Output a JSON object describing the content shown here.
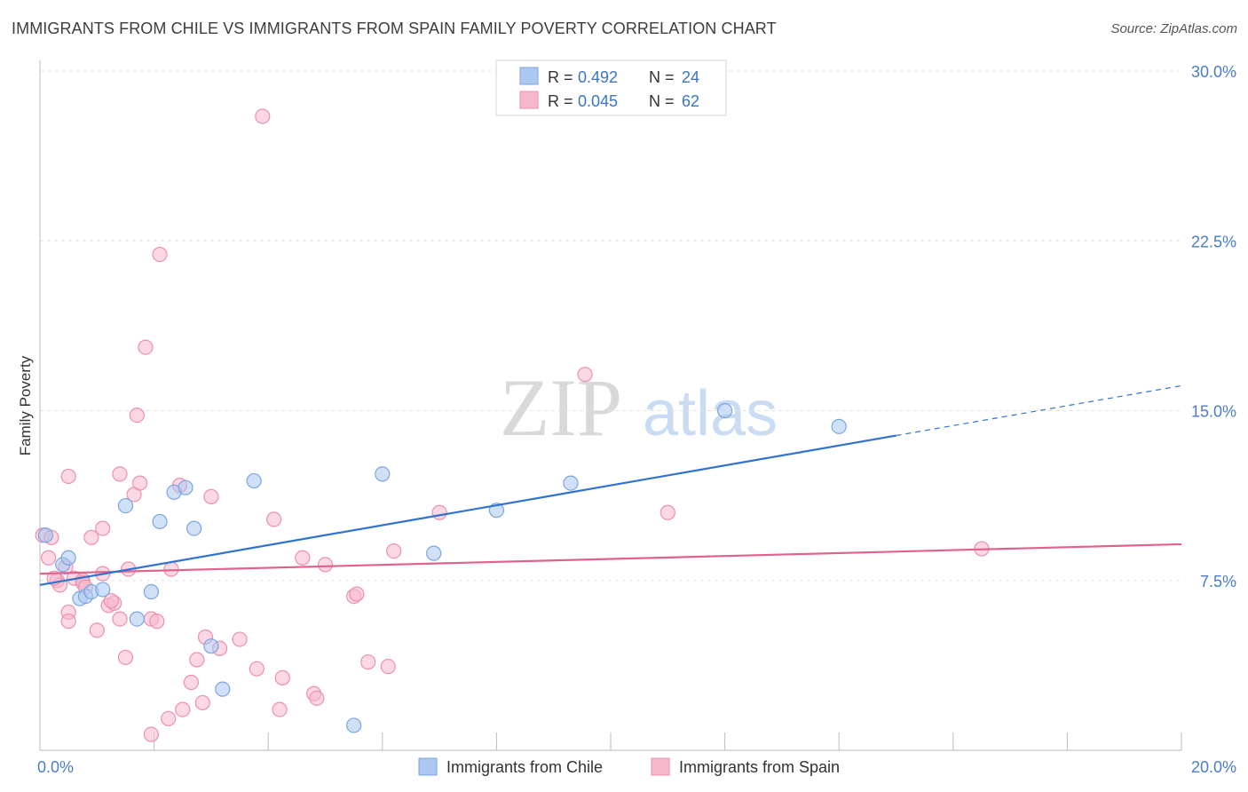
{
  "title": "IMMIGRANTS FROM CHILE VS IMMIGRANTS FROM SPAIN FAMILY POVERTY CORRELATION CHART",
  "source": "Source: ZipAtlas.com",
  "watermark": {
    "zip": "ZIP",
    "atlas": "atlas"
  },
  "colors": {
    "chile_fill": "#aac8f0",
    "chile_stroke": "#7aa6e0",
    "chile_line": "#2f72d0",
    "spain_fill": "#f7b8cc",
    "spain_stroke": "#ec90ae",
    "spain_line": "#e0628f",
    "axis_text": "#4a7cc7",
    "grid": "#e3e3e3"
  },
  "chart_data": {
    "type": "scatter",
    "title": "IMMIGRANTS FROM CHILE VS IMMIGRANTS FROM SPAIN FAMILY POVERTY CORRELATION CHART",
    "xlabel": "",
    "ylabel": "Family Poverty",
    "xlim": [
      0,
      20
    ],
    "ylim": [
      0,
      30
    ],
    "x_tick_labels": [
      "0.0%",
      "20.0%"
    ],
    "y_ticks": [
      7.5,
      15.0,
      22.5,
      30.0
    ],
    "y_tick_labels": [
      "7.5%",
      "15.0%",
      "22.5%",
      "30.0%"
    ],
    "grid": true,
    "stats": [
      {
        "r_label": "R =",
        "r": "0.492",
        "n_label": "N =",
        "n": "24"
      },
      {
        "r_label": "R =",
        "r": "0.045",
        "n_label": "N =",
        "n": "62"
      }
    ],
    "series": [
      {
        "name": "Immigrants from Chile",
        "points": [
          [
            0.1,
            9.5
          ],
          [
            0.4,
            8.2
          ],
          [
            0.5,
            8.5
          ],
          [
            0.7,
            6.7
          ],
          [
            0.8,
            6.8
          ],
          [
            0.9,
            7.0
          ],
          [
            1.1,
            7.1
          ],
          [
            1.5,
            10.8
          ],
          [
            1.7,
            5.8
          ],
          [
            1.95,
            7.0
          ],
          [
            2.1,
            10.1
          ],
          [
            2.35,
            11.4
          ],
          [
            2.55,
            11.6
          ],
          [
            2.7,
            9.8
          ],
          [
            3.0,
            4.6
          ],
          [
            3.2,
            2.7
          ],
          [
            3.75,
            11.9
          ],
          [
            5.5,
            1.1
          ],
          [
            6.0,
            12.2
          ],
          [
            6.9,
            8.7
          ],
          [
            8.0,
            10.6
          ],
          [
            9.3,
            11.8
          ],
          [
            12.0,
            15.0
          ],
          [
            14.0,
            14.3
          ]
        ],
        "trend": {
          "x": [
            0.0,
            15.0
          ],
          "y": [
            7.3,
            13.9
          ]
        },
        "trend_extension": {
          "x": [
            15.0,
            20.0
          ],
          "y": [
            13.9,
            16.1
          ]
        }
      },
      {
        "name": "Immigrants from Spain",
        "points": [
          [
            0.05,
            9.5
          ],
          [
            0.15,
            8.5
          ],
          [
            0.2,
            9.4
          ],
          [
            0.3,
            7.5
          ],
          [
            0.35,
            7.3
          ],
          [
            0.45,
            8.1
          ],
          [
            0.5,
            6.1
          ],
          [
            0.5,
            5.7
          ],
          [
            0.5,
            12.1
          ],
          [
            0.6,
            7.6
          ],
          [
            0.75,
            7.5
          ],
          [
            0.75,
            7.4
          ],
          [
            0.9,
            9.4
          ],
          [
            1.0,
            5.3
          ],
          [
            1.1,
            7.8
          ],
          [
            1.1,
            9.8
          ],
          [
            1.2,
            6.4
          ],
          [
            1.3,
            6.5
          ],
          [
            1.4,
            12.2
          ],
          [
            1.4,
            5.8
          ],
          [
            1.5,
            4.1
          ],
          [
            1.55,
            8.0
          ],
          [
            1.65,
            11.3
          ],
          [
            1.7,
            14.8
          ],
          [
            1.75,
            11.8
          ],
          [
            1.85,
            17.8
          ],
          [
            1.95,
            0.7
          ],
          [
            1.95,
            5.8
          ],
          [
            2.05,
            5.7
          ],
          [
            2.1,
            21.9
          ],
          [
            2.25,
            1.4
          ],
          [
            2.3,
            8.0
          ],
          [
            2.45,
            11.7
          ],
          [
            2.5,
            1.8
          ],
          [
            2.75,
            4.0
          ],
          [
            2.85,
            2.1
          ],
          [
            2.9,
            5.0
          ],
          [
            3.0,
            11.2
          ],
          [
            3.15,
            4.5
          ],
          [
            3.5,
            4.9
          ],
          [
            3.8,
            3.6
          ],
          [
            3.9,
            28.0
          ],
          [
            4.1,
            10.2
          ],
          [
            4.2,
            1.8
          ],
          [
            4.25,
            3.2
          ],
          [
            4.8,
            2.5
          ],
          [
            4.85,
            2.3
          ],
          [
            5.0,
            8.2
          ],
          [
            5.5,
            6.8
          ],
          [
            5.55,
            6.9
          ],
          [
            5.75,
            3.9
          ],
          [
            6.1,
            3.7
          ],
          [
            6.2,
            8.8
          ],
          [
            7.0,
            10.5
          ],
          [
            9.55,
            16.6
          ],
          [
            11.0,
            10.5
          ],
          [
            16.5,
            8.9
          ],
          [
            0.8,
            7.2
          ],
          [
            1.25,
            6.6
          ],
          [
            0.25,
            7.6
          ],
          [
            2.65,
            3.0
          ],
          [
            4.6,
            8.5
          ]
        ],
        "trend": {
          "x": [
            0.0,
            20.0
          ],
          "y": [
            7.8,
            9.1
          ]
        }
      }
    ]
  }
}
